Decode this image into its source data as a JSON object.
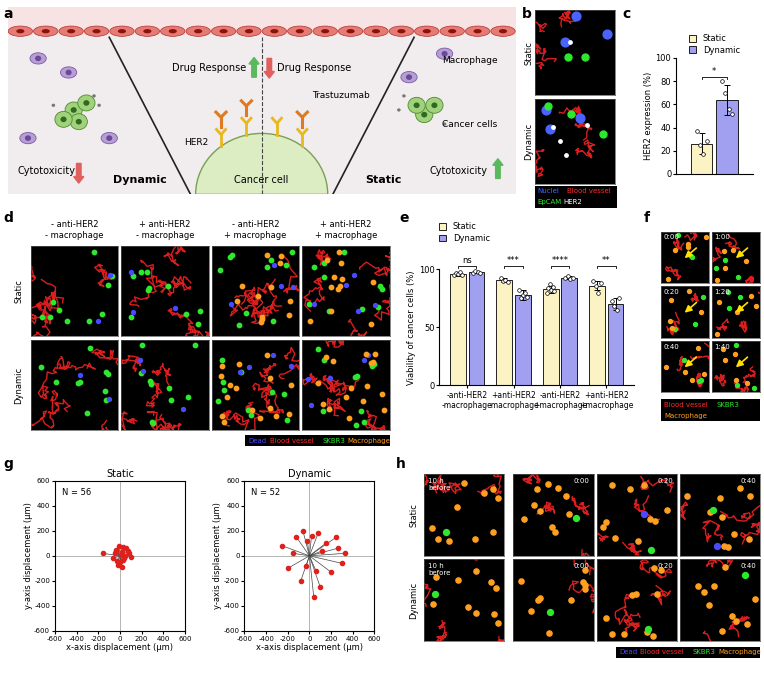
{
  "diagram": {
    "label": "a",
    "left": "Dynamic",
    "right": "Static",
    "drug_response": "Drug Response",
    "trastuzumab": "Trastuzumab",
    "her2": "HER2",
    "cancer_cell": "Cancer cell",
    "macrophage": "Macrophage",
    "cancer_cells": "Cancer cells",
    "cytotoxicity": "Cytotoxicity"
  },
  "images": {
    "b": {
      "label": "b",
      "rows": [
        "Static",
        "Dynamic"
      ],
      "legend": [
        {
          "text": "Nuclei",
          "color": "#4a63ff"
        },
        {
          "text": "Blood vessel",
          "color": "#ff2a2a"
        },
        {
          "text": "EpCAM",
          "color": "#2ee82e"
        },
        {
          "text": "HER2",
          "color": "#ffffff"
        }
      ]
    },
    "d": {
      "label": "d",
      "rows": [
        "Static",
        "Dynamic"
      ],
      "columns": [
        "- anti-HER2\n- macrophage",
        "+ anti-HER2\n- macrophage",
        "- anti-HER2\n+ macrophage",
        "+ anti-HER2\n+ macrophage"
      ],
      "legend": [
        {
          "text": "Dead",
          "color": "#4a4aff"
        },
        {
          "text": "Blood vessel",
          "color": "#ff2a2a"
        },
        {
          "text": "SKBR3",
          "color": "#2ee82e"
        },
        {
          "text": "Macrophage",
          "color": "#ffa020"
        }
      ]
    },
    "f": {
      "label": "f",
      "timestamps": [
        "0:00",
        "1:00",
        "0:20",
        "1:20",
        "0:40",
        "1:40"
      ],
      "legend": [
        {
          "text": "Blood vessel",
          "color": "#ff2a2a"
        },
        {
          "text": "SKBR3",
          "color": "#2ee82e"
        },
        {
          "text": "Macrophage",
          "color": "#ffa020"
        }
      ]
    },
    "h": {
      "label": "h",
      "rows": [
        "Static",
        "Dynamic"
      ],
      "first_column": "10 h\nbefore",
      "timestamps": [
        "0:00",
        "0:20",
        "0:40"
      ],
      "legend": [
        {
          "text": "Dead",
          "color": "#4a4aff"
        },
        {
          "text": "Blood vessel",
          "color": "#ff2a2a"
        },
        {
          "text": "SKBR3",
          "color": "#2ee82e"
        },
        {
          "text": "Macrophage",
          "color": "#ffa020"
        }
      ]
    }
  },
  "chart_data": [
    {
      "panel": "c",
      "type": "bar",
      "categories": [
        null
      ],
      "ylabel": "HER2 expression (%)",
      "ylim": [
        0,
        100
      ],
      "yticks": [
        0,
        20,
        40,
        60,
        80,
        100
      ],
      "tick_labels": "y",
      "legend": "top",
      "annotations": [
        "*"
      ],
      "series": [
        {
          "name": "Static",
          "color": "#fbf3c4",
          "values": [
            26
          ],
          "errors": [
            9
          ],
          "points": [
            [
              37,
              25,
              17,
              28
            ]
          ]
        },
        {
          "name": "Dynamic",
          "color": "#a09ff0",
          "values": [
            64
          ],
          "errors": [
            13
          ],
          "points": [
            [
              80,
              70,
              56,
              52
            ]
          ]
        }
      ]
    },
    {
      "panel": "e",
      "type": "bar",
      "categories": [
        "-anti-HER2\n-macrophage",
        "+anti-HER2\n-macrophage",
        "-anti-HER2\n+macrophage",
        "+anti-HER2\n+macrophage"
      ],
      "ylabel": "Viability of cancer cells (%)",
      "ylim": [
        0,
        100
      ],
      "yticks": [
        0,
        50,
        100
      ],
      "legend": "top left",
      "annotations": [
        "ns",
        "***",
        "****",
        "**"
      ],
      "series": [
        {
          "name": "Static",
          "color": "#fbf3c4",
          "values": [
            96,
            91,
            83,
            86
          ],
          "errors": [
            2,
            2,
            3,
            4
          ],
          "points": [
            [
              95,
              97,
              96,
              98,
              95
            ],
            [
              93,
              90,
              91,
              89
            ],
            [
              80,
              84,
              87,
              82,
              85,
              81
            ],
            [
              90,
              86,
              80,
              88
            ]
          ]
        },
        {
          "name": "Dynamic",
          "color": "#a09ff0",
          "values": [
            98,
            78,
            93,
            70
          ],
          "errors": [
            1,
            4,
            1,
            5
          ],
          "points": [
            [
              97,
              99,
              98,
              97
            ],
            [
              82,
              75,
              78,
              80,
              76
            ],
            [
              93,
              94,
              92,
              93
            ],
            [
              73,
              68,
              65,
              75
            ]
          ]
        }
      ]
    },
    {
      "panel": "g",
      "type": "scatter",
      "title": "Static",
      "annotation": "N = 56",
      "xlabel": "x-axis displacement (μm)",
      "ylabel": "y-axis displacement (μm)",
      "x": [
        -160,
        -40,
        -30,
        20,
        40,
        60,
        -20,
        10,
        30,
        -50,
        70,
        100,
        -10,
        0,
        50,
        -60,
        25,
        -35,
        15,
        80
      ],
      "y": [
        20,
        50,
        -40,
        30,
        -20,
        60,
        -70,
        10,
        -30,
        20,
        40,
        -10,
        80,
        -50,
        0,
        -20,
        70,
        35,
        -90,
        20
      ],
      "color": "#e0201c",
      "marker": "o",
      "xlim": [
        -600,
        600
      ],
      "xticks": [
        -600,
        -400,
        -200,
        0,
        200,
        400,
        600
      ],
      "ylim": [
        -600,
        600
      ],
      "yticks": [
        -600,
        -400,
        -200,
        0,
        200,
        400,
        600
      ]
    },
    {
      "type": "scatter",
      "title": "Dynamic",
      "annotation": "N = 52",
      "xlabel": "x-axis displacement (μm)",
      "ylabel": "y-axis displacement (μm)",
      "x": [
        -250,
        -200,
        -120,
        -60,
        20,
        80,
        150,
        250,
        330,
        300,
        200,
        100,
        -80,
        40,
        -30,
        120,
        260,
        -150,
        60,
        -20
      ],
      "y": [
        80,
        -100,
        150,
        200,
        160,
        180,
        100,
        150,
        20,
        -60,
        -130,
        -250,
        -200,
        -330,
        -80,
        40,
        60,
        20,
        -120,
        120
      ],
      "color": "#e0201c",
      "marker": "o",
      "xlim": [
        -600,
        600
      ],
      "xticks": [
        -600,
        -400,
        -200,
        0,
        200,
        400,
        600
      ],
      "ylim": [
        -600,
        600
      ],
      "yticks": [
        -600,
        -400,
        -200,
        0,
        200,
        400,
        600
      ]
    }
  ]
}
